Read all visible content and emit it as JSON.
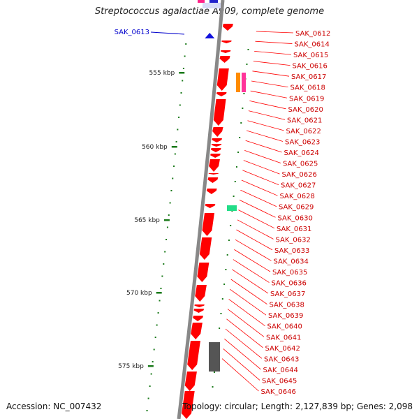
{
  "header": {
    "title": "Streptococcus agalactiae A909, complete genome"
  },
  "footer": {
    "accession": "Accession: NC_007432",
    "summary": "Topology: circular; Length: 2,127,839 bp; Genes: 2,098"
  },
  "colors": {
    "forward_gene": "#ff0000",
    "reverse_gene": "#ff0000",
    "tick": "#1a7a1a",
    "backbone": "#888888",
    "label_line": "#ff0000",
    "label_text": "#cc0000",
    "blue_label": "#0000cc"
  },
  "scale": {
    "ticks": [
      "555 kbp",
      "560 kbp",
      "565 kbp",
      "570 kbp",
      "575 kbp"
    ]
  },
  "blue_gene": {
    "label": "SAK_0613"
  },
  "gene_labels": [
    "SAK_0612",
    "SAK_0614",
    "SAK_0615",
    "SAK_0616",
    "SAK_0617",
    "SAK_0618",
    "SAK_0619",
    "SAK_0620",
    "SAK_0621",
    "SAK_0622",
    "SAK_0623",
    "SAK_0624",
    "SAK_0625",
    "SAK_0626",
    "SAK_0627",
    "SAK_0628",
    "SAK_0629",
    "SAK_0630",
    "SAK_0631",
    "SAK_0632",
    "SAK_0633",
    "SAK_0634",
    "SAK_0635",
    "SAK_0636",
    "SAK_0637",
    "SAK_0638",
    "SAK_0639",
    "SAK_0640",
    "SAK_0641",
    "SAK_0642",
    "SAK_0643",
    "SAK_0644",
    "SAK_0645",
    "SAK_0646"
  ]
}
